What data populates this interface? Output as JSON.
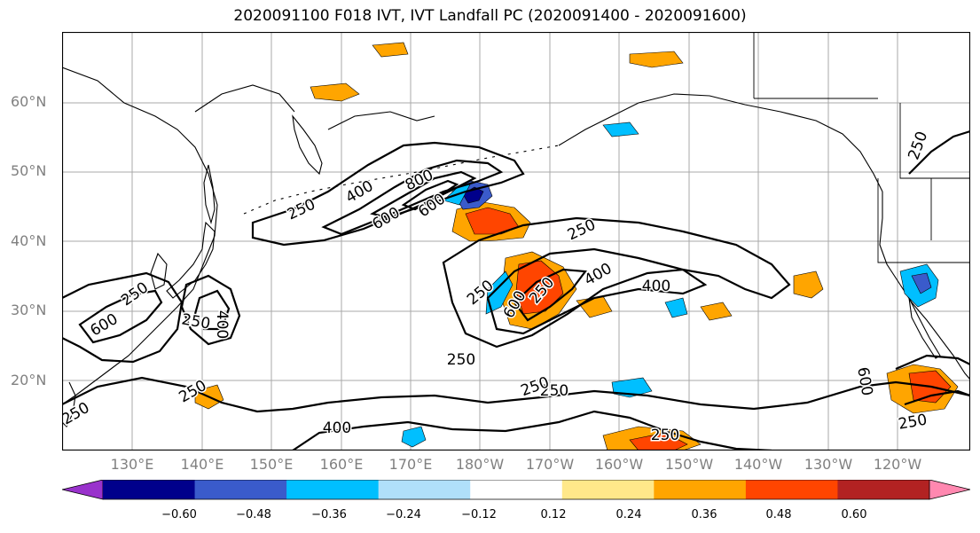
{
  "title": "2020091100 F018 IVT, IVT Landfall PC (2020091400 - 2020091600)",
  "lat_labels": [
    "60°N",
    "50°N",
    "40°N",
    "30°N",
    "20°N"
  ],
  "lon_labels": [
    "130°E",
    "140°E",
    "150°E",
    "160°E",
    "170°E",
    "180°W",
    "170°W",
    "160°W",
    "150°W",
    "140°W",
    "130°W",
    "120°W"
  ],
  "contour_labels": [
    "250",
    "400",
    "600",
    "800",
    "600",
    "250",
    "250",
    "400",
    "400",
    "250",
    "600",
    "600",
    "250",
    "400",
    "250",
    "250",
    "250",
    "400",
    "250",
    "250",
    "600",
    "250",
    "250",
    "250",
    "250"
  ],
  "colorbar": {
    "ticks": [
      "−0.60",
      "−0.48",
      "−0.36",
      "−0.24",
      "−0.12",
      "0.12",
      "0.24",
      "0.36",
      "0.48",
      "0.60"
    ],
    "colors": [
      "#9932cc",
      "#00008b",
      "#3a5bcb",
      "#00bfff",
      "#b0e0fa",
      "#ffffff",
      "#ffe88a",
      "#ffa500",
      "#ff4500",
      "#b22222",
      "#ff88b0"
    ]
  },
  "colors": {
    "contour": "#000000",
    "grid": "#a9a9a9",
    "axis_text": "#808080"
  }
}
